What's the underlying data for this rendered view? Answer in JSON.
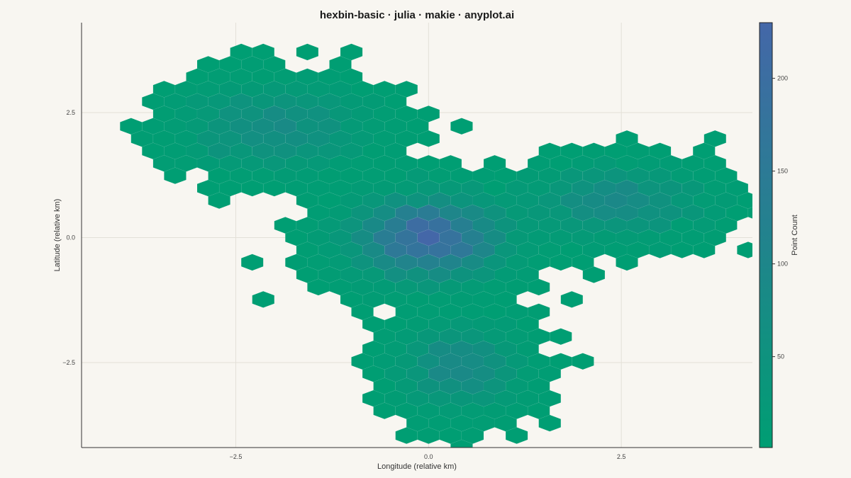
{
  "chart_data": {
    "type": "heatmap",
    "subtype": "hexbin",
    "title": "hexbin-basic · julia · makie · anyplot.ai",
    "xlabel": "Longitude (relative km)",
    "ylabel": "Latitude (relative km)",
    "xlim": [
      -4.5,
      4.2
    ],
    "ylim": [
      -4.2,
      4.3
    ],
    "x_ticks": [
      -2.5,
      0.0,
      2.5
    ],
    "x_tick_labels": [
      "−2.5",
      "0.0",
      "2.5"
    ],
    "y_ticks": [
      -2.5,
      0.0,
      2.5
    ],
    "y_tick_labels": [
      "−2.5",
      "0.0",
      "2.5"
    ],
    "grid": true,
    "colorbar": {
      "label": "Point Count",
      "range": [
        1,
        230
      ],
      "ticks": [
        50,
        100,
        150,
        200
      ],
      "tick_labels": [
        "50",
        "100",
        "150",
        "200"
      ],
      "colors": [
        "#009e73",
        "#4467a8"
      ]
    },
    "hex_radius": 0.165,
    "clusters": [
      {
        "cx": 0.0,
        "cy": 0.0,
        "sx": 0.9,
        "sy": 0.75,
        "peak": 230
      },
      {
        "cx": -2.0,
        "cy": 2.2,
        "sx": 1.05,
        "sy": 0.72,
        "peak": 95
      },
      {
        "cx": 2.4,
        "cy": 0.7,
        "sx": 1.0,
        "sy": 0.62,
        "peak": 85
      },
      {
        "cx": 0.4,
        "cy": -2.6,
        "sx": 0.7,
        "sy": 0.75,
        "peak": 75
      }
    ]
  }
}
